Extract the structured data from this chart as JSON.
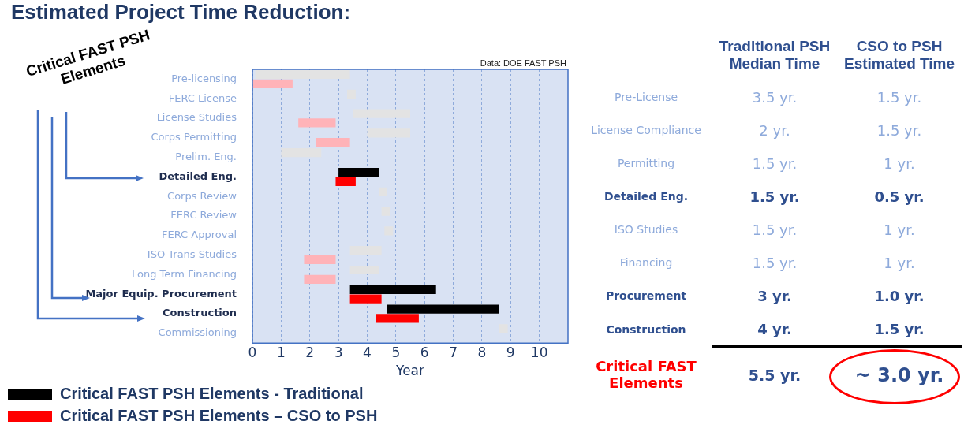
{
  "chart_data": [
    {
      "type": "bar",
      "orientation": "horizontal",
      "title": "Estimated Project Time Reduction:",
      "xlabel": "Year",
      "categories": [
        "Pre-licensing",
        "FERC License",
        "License Studies",
        "Corps Permitting",
        "Prelim. Eng.",
        "Detailed Eng.",
        "Corps Review",
        "FERC Review",
        "FERC Approval",
        "ISO Trans Studies",
        "Long Term Financing",
        "Major Equip. Procurement",
        "Construction",
        "Commissioning"
      ],
      "series": [
        {
          "color": "#e3e3e3",
          "values": [
            3.3,
            0.3,
            2.0,
            1.5,
            1.4,
            null,
            0.3,
            0.3,
            0.3,
            1.1,
            1.0,
            null,
            null,
            0.3
          ],
          "base": [
            0.1,
            3.3,
            3.5,
            4.0,
            1.0,
            null,
            4.4,
            4.5,
            4.6,
            3.4,
            3.4,
            null,
            null,
            8.6
          ]
        },
        {
          "name": "Critical FAST PSH Elements - Traditional",
          "color": "#000000",
          "values": [
            null,
            null,
            null,
            null,
            null,
            1.4,
            null,
            null,
            null,
            null,
            null,
            3.0,
            3.9,
            null
          ],
          "base": [
            null,
            null,
            null,
            null,
            null,
            3.0,
            null,
            null,
            null,
            null,
            null,
            3.4,
            4.7,
            null
          ]
        },
        {
          "color": "#ffb3b8",
          "values": [
            1.4,
            null,
            1.3,
            1.2,
            null,
            null,
            null,
            null,
            null,
            1.1,
            1.1,
            null,
            null,
            null
          ],
          "base": [
            0,
            null,
            1.6,
            2.2,
            null,
            null,
            null,
            null,
            null,
            1.8,
            1.8,
            null,
            null,
            null
          ]
        },
        {
          "name": "Critical FAST PSH Elements – CSO to PSH",
          "color": "#ff0000",
          "values": [
            null,
            null,
            null,
            null,
            null,
            0.7,
            null,
            null,
            null,
            null,
            null,
            1.1,
            1.5,
            null
          ],
          "base": [
            null,
            null,
            null,
            null,
            null,
            2.9,
            null,
            null,
            null,
            null,
            null,
            3.4,
            4.3,
            null
          ]
        }
      ],
      "xlim": [
        0,
        11
      ],
      "xticks": [
        0,
        1,
        2,
        3,
        4,
        5,
        6,
        7,
        8,
        9,
        10
      ],
      "grid": "x",
      "legend": "bottom left",
      "annotations": [
        "Data: DOE FAST PSH",
        "Critical FAST PSH Elements"
      ]
    },
    {
      "type": "other",
      "categories": [
        "Pre-License",
        "License Compliance",
        "Permitting",
        "Detailed Eng.",
        "ISO Studies",
        "Financing",
        "Procurement",
        "Construction",
        "Critical FAST Elements"
      ],
      "series": [
        {
          "name": "Traditional PSH Median Time",
          "values": [
            3.5,
            2,
            1.5,
            1.5,
            1.5,
            1.5,
            3,
            4,
            5.5
          ],
          "value_labels": [
            "3.5 yr.",
            "2 yr.",
            "1.5 yr.",
            "1.5 yr.",
            "1.5 yr.",
            "1.5 yr.",
            "3 yr.",
            "4 yr.",
            "5.5 yr."
          ],
          "colors": [
            "#8eaadb",
            "#8eaadb",
            "#8eaadb",
            "#2f4f8f",
            "#8eaadb",
            "#8eaadb",
            "#2f4f8f",
            "#2f4f8f",
            "#ff0000"
          ]
        },
        {
          "name": "CSO to PSH Estimated Time",
          "values": [
            1.5,
            1.5,
            1,
            0.5,
            1,
            1,
            1.0,
            1.5,
            3.0
          ],
          "value_labels": [
            "1.5 yr.",
            "1.5 yr.",
            "1 yr.",
            "0.5 yr.",
            "1 yr.",
            "1 yr.",
            "1.0 yr.",
            "1.5 yr.",
            "~ 3.0 yr."
          ],
          "colors": [
            "#8eaadb",
            "#8eaadb",
            "#8eaadb",
            "#2f4f8f",
            "#8eaadb",
            "#8eaadb",
            "#2f4f8f",
            "#2f4f8f",
            "#2f4f8f"
          ]
        }
      ]
    }
  ]
}
